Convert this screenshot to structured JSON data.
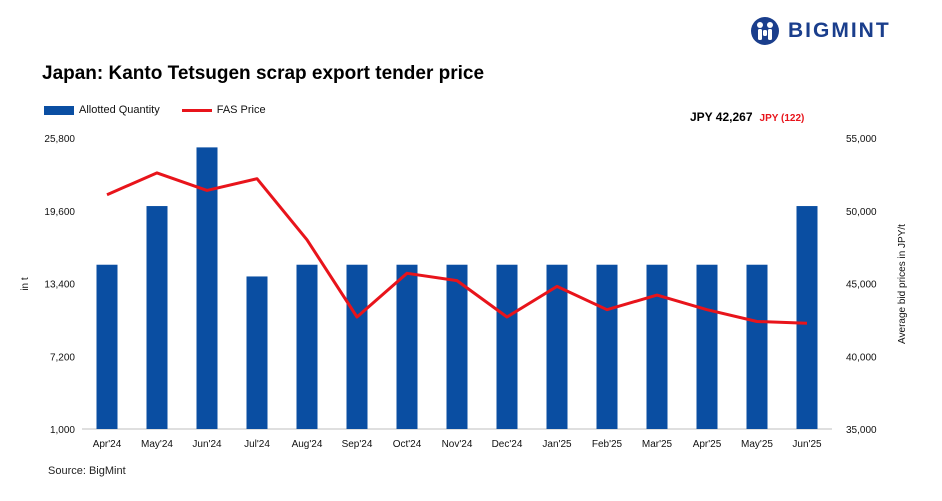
{
  "brand": {
    "name": "BIGMINT",
    "color": "#1a3e8c"
  },
  "title": "Japan: Kanto Tetsugen scrap export tender price",
  "source": "Source: BigMint",
  "latest": {
    "price": "JPY 42,267",
    "change": "JPY (122)"
  },
  "colors": {
    "bar": "#0a4ea2",
    "line": "#e8141b",
    "axis": "#bfbfbf"
  },
  "chart_data": {
    "type": "bar",
    "title": "Japan: Kanto Tetsugen scrap export tender price",
    "categories": [
      "Apr'24",
      "May'24",
      "Jun'24",
      "Jul'24",
      "Aug'24",
      "Sep'24",
      "Oct'24",
      "Nov'24",
      "Dec'24",
      "Jan'25",
      "Feb'25",
      "Mar'25",
      "Apr'25",
      "May'25",
      "Jun'25"
    ],
    "series": [
      {
        "name": "Allotted Quantity",
        "type": "bar",
        "axis": "left",
        "values": [
          15000,
          20000,
          25000,
          14000,
          15000,
          15000,
          15000,
          15000,
          15000,
          15000,
          15000,
          15000,
          15000,
          15000,
          20000
        ]
      },
      {
        "name": "FAS Price",
        "type": "line",
        "axis": "right",
        "values": [
          51100,
          52600,
          51400,
          52200,
          48000,
          42700,
          45700,
          45200,
          42700,
          44800,
          43200,
          44200,
          43200,
          42389,
          42267
        ]
      }
    ],
    "ylabel": "in t",
    "y2label": "Average bid prices in JPY/t",
    "ylim": [
      1000,
      25800
    ],
    "y2lim": [
      35000,
      55000
    ],
    "yticks": [
      "1,000",
      "7,200",
      "13,400",
      "19,600",
      "25,800"
    ],
    "y2ticks": [
      "35,000",
      "40,000",
      "45,000",
      "50,000",
      "55,000"
    ],
    "grid": false,
    "legend": "top-left"
  }
}
